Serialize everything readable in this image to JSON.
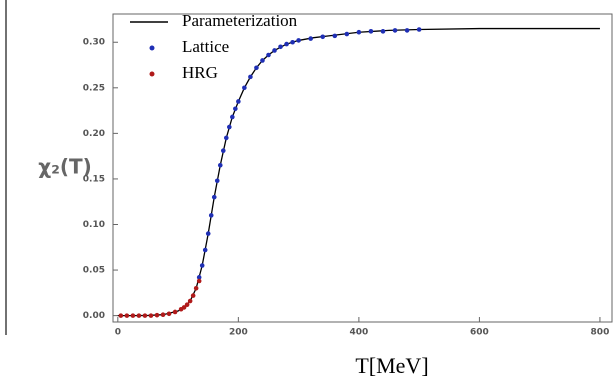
{
  "chart_data": {
    "type": "line",
    "x_label": "T[MeV]",
    "y_label": "χ₂(T)",
    "xlim": [
      -8,
      820
    ],
    "ylim": [
      -0.007,
      0.331
    ],
    "xticks": [
      0,
      200,
      400,
      600,
      800
    ],
    "yticks": [
      {
        "value": 0,
        "label": "0.00"
      },
      {
        "value": 0.05,
        "label": "0.05"
      },
      {
        "value": 0.1,
        "label": "0.10"
      },
      {
        "value": 0.15,
        "label": "0.15"
      },
      {
        "value": 0.2,
        "label": "0.20"
      },
      {
        "value": 0.25,
        "label": "0.25"
      },
      {
        "value": 0.3,
        "label": "0.30"
      }
    ],
    "legend": "upper left",
    "series": [
      {
        "name": "Parameterization",
        "color": "#000000",
        "style": "line",
        "x": [
          0,
          25,
          50,
          75,
          100,
          110,
          120,
          130,
          140,
          150,
          160,
          170,
          180,
          190,
          200,
          210,
          220,
          230,
          240,
          250,
          260,
          280,
          300,
          325,
          350,
          400,
          450,
          500,
          600,
          700,
          800
        ],
        "values": [
          0,
          0,
          0.0002,
          0.001,
          0.005,
          0.009,
          0.016,
          0.03,
          0.055,
          0.09,
          0.13,
          0.165,
          0.195,
          0.218,
          0.235,
          0.25,
          0.262,
          0.272,
          0.28,
          0.286,
          0.291,
          0.298,
          0.302,
          0.305,
          0.307,
          0.311,
          0.313,
          0.314,
          0.315,
          0.315,
          0.315
        ]
      },
      {
        "name": "Lattice",
        "color": "#1f2fb5",
        "style": "points",
        "x": [
          135,
          140,
          145,
          150,
          155,
          160,
          165,
          170,
          175,
          180,
          185,
          190,
          195,
          200,
          210,
          220,
          230,
          240,
          250,
          260,
          270,
          280,
          290,
          300,
          320,
          340,
          360,
          380,
          400,
          420,
          440,
          460,
          480,
          500
        ],
        "values": [
          0.042,
          0.055,
          0.072,
          0.09,
          0.11,
          0.13,
          0.148,
          0.165,
          0.181,
          0.195,
          0.207,
          0.218,
          0.227,
          0.235,
          0.25,
          0.262,
          0.272,
          0.28,
          0.286,
          0.291,
          0.295,
          0.298,
          0.3,
          0.302,
          0.304,
          0.306,
          0.307,
          0.309,
          0.311,
          0.312,
          0.312,
          0.313,
          0.313,
          0.314
        ]
      },
      {
        "name": "HRG",
        "color": "#b01a1a",
        "style": "points",
        "x": [
          5,
          15,
          25,
          35,
          45,
          55,
          65,
          75,
          85,
          95,
          105,
          110,
          115,
          120,
          125,
          130,
          135
        ],
        "values": [
          0,
          0,
          0,
          0,
          0,
          0,
          0.0005,
          0.001,
          0.002,
          0.004,
          0.007,
          0.009,
          0.012,
          0.016,
          0.022,
          0.03,
          0.038
        ]
      }
    ]
  }
}
